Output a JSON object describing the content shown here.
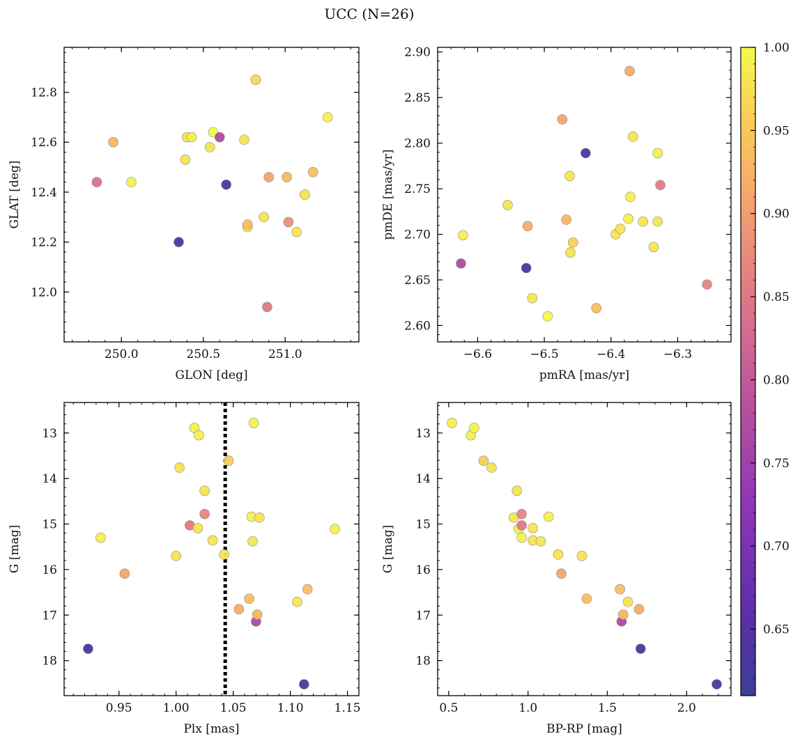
{
  "title": "UCC (N=26)",
  "colorbar": {
    "min": 0.61,
    "max": 1.0,
    "ticks": [
      "1.00",
      "0.95",
      "0.90",
      "0.85",
      "0.80",
      "0.75",
      "0.70",
      "0.65"
    ],
    "tick_values": [
      1.0,
      0.95,
      0.9,
      0.85,
      0.8,
      0.75,
      0.7,
      0.65
    ],
    "colormap": "plasma"
  },
  "chart_data": [
    {
      "type": "scatter",
      "xlabel": "GLON [deg]",
      "ylabel": "GLAT [deg]",
      "xlim": [
        249.65,
        251.45
      ],
      "ylim": [
        11.8,
        12.98
      ],
      "xticks": [
        250.0,
        250.5,
        251.0
      ],
      "xtick_labels": [
        "250.0",
        "250.5",
        "251.0"
      ],
      "yticks": [
        12.0,
        12.2,
        12.4,
        12.6,
        12.8
      ],
      "ytick_labels": [
        "12.0",
        "12.2",
        "12.4",
        "12.6",
        "12.8"
      ],
      "points": [
        {
          "x": 249.85,
          "y": 12.44,
          "p": 0.84
        },
        {
          "x": 249.95,
          "y": 12.6,
          "p": 0.93
        },
        {
          "x": 250.06,
          "y": 12.44,
          "p": 0.99
        },
        {
          "x": 250.35,
          "y": 12.2,
          "p": 0.63
        },
        {
          "x": 250.39,
          "y": 12.53,
          "p": 0.98
        },
        {
          "x": 250.4,
          "y": 12.62,
          "p": 0.98
        },
        {
          "x": 250.43,
          "y": 12.62,
          "p": 0.99
        },
        {
          "x": 250.54,
          "y": 12.58,
          "p": 0.98
        },
        {
          "x": 250.56,
          "y": 12.64,
          "p": 1.0
        },
        {
          "x": 250.6,
          "y": 12.62,
          "p": 0.77
        },
        {
          "x": 250.64,
          "y": 12.43,
          "p": 0.63
        },
        {
          "x": 250.75,
          "y": 12.61,
          "p": 0.98
        },
        {
          "x": 250.77,
          "y": 12.26,
          "p": 0.98
        },
        {
          "x": 250.77,
          "y": 12.27,
          "p": 0.94
        },
        {
          "x": 250.82,
          "y": 12.85,
          "p": 0.99
        },
        {
          "x": 250.87,
          "y": 12.3,
          "p": 0.98
        },
        {
          "x": 250.89,
          "y": 11.94,
          "p": 0.85
        },
        {
          "x": 250.9,
          "y": 12.46,
          "p": 0.91
        },
        {
          "x": 251.01,
          "y": 12.46,
          "p": 0.93
        },
        {
          "x": 251.02,
          "y": 12.28,
          "p": 0.88
        },
        {
          "x": 251.07,
          "y": 12.24,
          "p": 0.98
        },
        {
          "x": 251.12,
          "y": 12.39,
          "p": 0.99
        },
        {
          "x": 251.12,
          "y": 12.39,
          "p": 0.98
        },
        {
          "x": 251.17,
          "y": 12.48,
          "p": 0.94
        },
        {
          "x": 251.26,
          "y": 12.7,
          "p": 0.99
        },
        {
          "x": 250.82,
          "y": 12.85,
          "p": 0.97
        }
      ]
    },
    {
      "type": "scatter",
      "xlabel": "pmRA [mas/yr]",
      "ylabel": "pmDE [mas/yr]",
      "xlim": [
        -6.66,
        -6.22
      ],
      "ylim": [
        2.582,
        2.905
      ],
      "xticks": [
        -6.6,
        -6.5,
        -6.4,
        -6.3
      ],
      "xtick_labels": [
        "−6.6",
        "−6.5",
        "−6.4",
        "−6.3"
      ],
      "yticks": [
        2.6,
        2.65,
        2.7,
        2.75,
        2.8,
        2.85,
        2.9
      ],
      "ytick_labels": [
        "2.60",
        "2.65",
        "2.70",
        "2.75",
        "2.80",
        "2.85",
        "2.90"
      ],
      "points": [
        {
          "x": -6.625,
          "y": 2.668,
          "p": 0.77
        },
        {
          "x": -6.622,
          "y": 2.699,
          "p": 0.99
        },
        {
          "x": -6.555,
          "y": 2.732,
          "p": 0.98
        },
        {
          "x": -6.527,
          "y": 2.663,
          "p": 0.63
        },
        {
          "x": -6.525,
          "y": 2.709,
          "p": 0.92
        },
        {
          "x": -6.518,
          "y": 2.63,
          "p": 0.98
        },
        {
          "x": -6.495,
          "y": 2.61,
          "p": 1.0
        },
        {
          "x": -6.473,
          "y": 2.826,
          "p": 0.91
        },
        {
          "x": -6.467,
          "y": 2.716,
          "p": 0.93
        },
        {
          "x": -6.462,
          "y": 2.764,
          "p": 0.98
        },
        {
          "x": -6.461,
          "y": 2.68,
          "p": 0.98
        },
        {
          "x": -6.457,
          "y": 2.691,
          "p": 0.96
        },
        {
          "x": -6.438,
          "y": 2.789,
          "p": 0.63
        },
        {
          "x": -6.422,
          "y": 2.619,
          "p": 0.94
        },
        {
          "x": -6.393,
          "y": 2.7,
          "p": 0.98
        },
        {
          "x": -6.386,
          "y": 2.706,
          "p": 0.98
        },
        {
          "x": -6.374,
          "y": 2.717,
          "p": 0.99
        },
        {
          "x": -6.372,
          "y": 2.879,
          "p": 0.92
        },
        {
          "x": -6.371,
          "y": 2.741,
          "p": 0.99
        },
        {
          "x": -6.367,
          "y": 2.807,
          "p": 0.98
        },
        {
          "x": -6.352,
          "y": 2.714,
          "p": 0.98
        },
        {
          "x": -6.336,
          "y": 2.686,
          "p": 0.98
        },
        {
          "x": -6.33,
          "y": 2.789,
          "p": 0.99
        },
        {
          "x": -6.33,
          "y": 2.714,
          "p": 0.98
        },
        {
          "x": -6.326,
          "y": 2.754,
          "p": 0.85
        },
        {
          "x": -6.256,
          "y": 2.645,
          "p": 0.87
        }
      ]
    },
    {
      "type": "scatter",
      "xlabel": "Plx [mas]",
      "ylabel": "G [mag]",
      "xlim": [
        0.902,
        1.16
      ],
      "ylim": [
        18.77,
        12.33
      ],
      "y_inverted": true,
      "vline": 1.043,
      "xticks": [
        0.95,
        1.0,
        1.05,
        1.1,
        1.15
      ],
      "xtick_labels": [
        "0.95",
        "1.00",
        "1.05",
        "1.10",
        "1.15"
      ],
      "yticks": [
        13,
        14,
        15,
        16,
        17,
        18
      ],
      "ytick_labels": [
        "13",
        "14",
        "15",
        "16",
        "17",
        "18"
      ],
      "points": [
        {
          "x": 0.923,
          "y": 17.74,
          "p": 0.63
        },
        {
          "x": 0.934,
          "y": 15.3,
          "p": 0.99
        },
        {
          "x": 0.955,
          "y": 16.09,
          "p": 0.91
        },
        {
          "x": 1.0,
          "y": 15.7,
          "p": 0.98
        },
        {
          "x": 1.003,
          "y": 13.76,
          "p": 0.98
        },
        {
          "x": 1.012,
          "y": 15.03,
          "p": 0.85
        },
        {
          "x": 1.016,
          "y": 12.89,
          "p": 0.99
        },
        {
          "x": 1.019,
          "y": 15.09,
          "p": 0.98
        },
        {
          "x": 1.02,
          "y": 13.05,
          "p": 0.99
        },
        {
          "x": 1.025,
          "y": 14.27,
          "p": 0.98
        },
        {
          "x": 1.025,
          "y": 14.78,
          "p": 0.87
        },
        {
          "x": 1.032,
          "y": 15.36,
          "p": 0.98
        },
        {
          "x": 1.042,
          "y": 15.67,
          "p": 0.98
        },
        {
          "x": 1.046,
          "y": 13.61,
          "p": 0.96
        },
        {
          "x": 1.055,
          "y": 16.87,
          "p": 0.92
        },
        {
          "x": 1.064,
          "y": 16.64,
          "p": 0.94
        },
        {
          "x": 1.066,
          "y": 14.84,
          "p": 0.99
        },
        {
          "x": 1.067,
          "y": 15.38,
          "p": 0.98
        },
        {
          "x": 1.068,
          "y": 12.78,
          "p": 0.99
        },
        {
          "x": 1.07,
          "y": 17.14,
          "p": 0.77
        },
        {
          "x": 1.071,
          "y": 16.99,
          "p": 0.93
        },
        {
          "x": 1.073,
          "y": 14.86,
          "p": 0.98
        },
        {
          "x": 1.106,
          "y": 16.71,
          "p": 0.98
        },
        {
          "x": 1.112,
          "y": 18.52,
          "p": 0.63
        },
        {
          "x": 1.115,
          "y": 16.43,
          "p": 0.94
        },
        {
          "x": 1.139,
          "y": 15.11,
          "p": 0.99
        }
      ]
    },
    {
      "type": "scatter",
      "xlabel": "BP-RP [mag]",
      "ylabel": "G [mag]",
      "xlim": [
        0.43,
        2.28
      ],
      "ylim": [
        18.77,
        12.33
      ],
      "y_inverted": true,
      "xticks": [
        0.5,
        1.0,
        1.5,
        2.0
      ],
      "xtick_labels": [
        "0.5",
        "1.0",
        "1.5",
        "2.0"
      ],
      "yticks": [
        13,
        14,
        15,
        16,
        17,
        18
      ],
      "ytick_labels": [
        "13",
        "14",
        "15",
        "16",
        "17",
        "18"
      ],
      "points": [
        {
          "x": 0.52,
          "y": 12.78,
          "p": 0.99
        },
        {
          "x": 0.64,
          "y": 13.05,
          "p": 0.99
        },
        {
          "x": 0.66,
          "y": 12.89,
          "p": 0.99
        },
        {
          "x": 0.72,
          "y": 13.61,
          "p": 0.96
        },
        {
          "x": 0.77,
          "y": 13.76,
          "p": 0.98
        },
        {
          "x": 0.91,
          "y": 14.86,
          "p": 0.98
        },
        {
          "x": 0.93,
          "y": 14.27,
          "p": 0.98
        },
        {
          "x": 0.94,
          "y": 15.11,
          "p": 0.99
        },
        {
          "x": 0.96,
          "y": 14.78,
          "p": 0.87
        },
        {
          "x": 0.96,
          "y": 15.03,
          "p": 0.85
        },
        {
          "x": 0.96,
          "y": 15.3,
          "p": 0.99
        },
        {
          "x": 1.03,
          "y": 15.09,
          "p": 0.98
        },
        {
          "x": 1.03,
          "y": 15.36,
          "p": 0.98
        },
        {
          "x": 1.08,
          "y": 15.38,
          "p": 0.98
        },
        {
          "x": 1.13,
          "y": 14.84,
          "p": 0.99
        },
        {
          "x": 1.19,
          "y": 15.67,
          "p": 0.98
        },
        {
          "x": 1.21,
          "y": 16.09,
          "p": 0.91
        },
        {
          "x": 1.34,
          "y": 15.7,
          "p": 0.98
        },
        {
          "x": 1.37,
          "y": 16.64,
          "p": 0.94
        },
        {
          "x": 1.58,
          "y": 16.43,
          "p": 0.94
        },
        {
          "x": 1.59,
          "y": 17.14,
          "p": 0.77
        },
        {
          "x": 1.6,
          "y": 16.99,
          "p": 0.93
        },
        {
          "x": 1.63,
          "y": 16.71,
          "p": 0.98
        },
        {
          "x": 1.7,
          "y": 16.87,
          "p": 0.92
        },
        {
          "x": 1.71,
          "y": 17.74,
          "p": 0.63
        },
        {
          "x": 2.19,
          "y": 18.52,
          "p": 0.63
        }
      ]
    }
  ]
}
